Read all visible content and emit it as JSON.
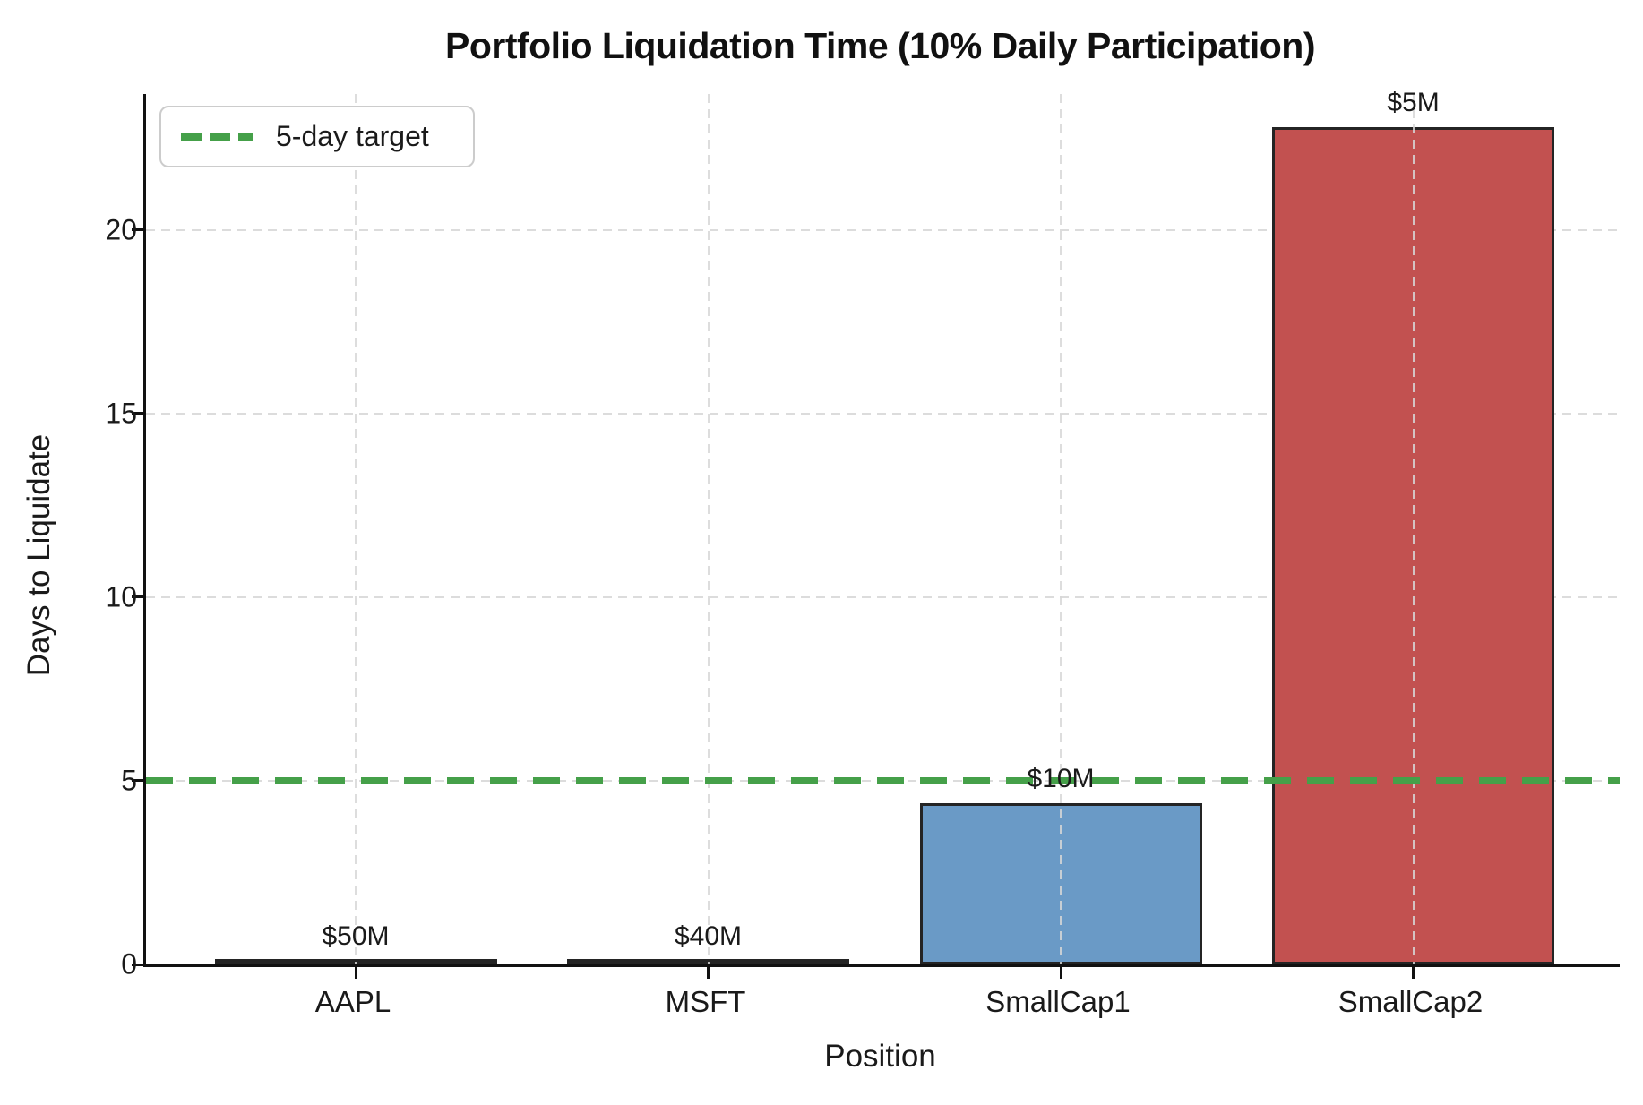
{
  "chart_data": {
    "type": "bar",
    "title": "Portfolio Liquidation Time (10% Daily Participation)",
    "xlabel": "Position",
    "ylabel": "Days to Liquidate",
    "categories": [
      "AAPL",
      "MSFT",
      "SmallCap1",
      "SmallCap2"
    ],
    "values": [
      0.1,
      0.1,
      4.4,
      22.8
    ],
    "bar_labels": [
      "$50M",
      "$40M",
      "$10M",
      "$5M"
    ],
    "bar_colors": [
      "#2d2d2d",
      "#2d2d2d",
      "#6a9ac6",
      "#c25150"
    ],
    "bar_edge_color": "#242424",
    "yticks": [
      0,
      5,
      10,
      15,
      20
    ],
    "ylim": [
      0,
      23.7
    ],
    "grid": true,
    "grid_color": "#dcdcdc",
    "legend_position": "upper-left",
    "target_line": {
      "value": 5,
      "label": "5-day target",
      "color": "#45a049",
      "style": "dashed"
    }
  }
}
